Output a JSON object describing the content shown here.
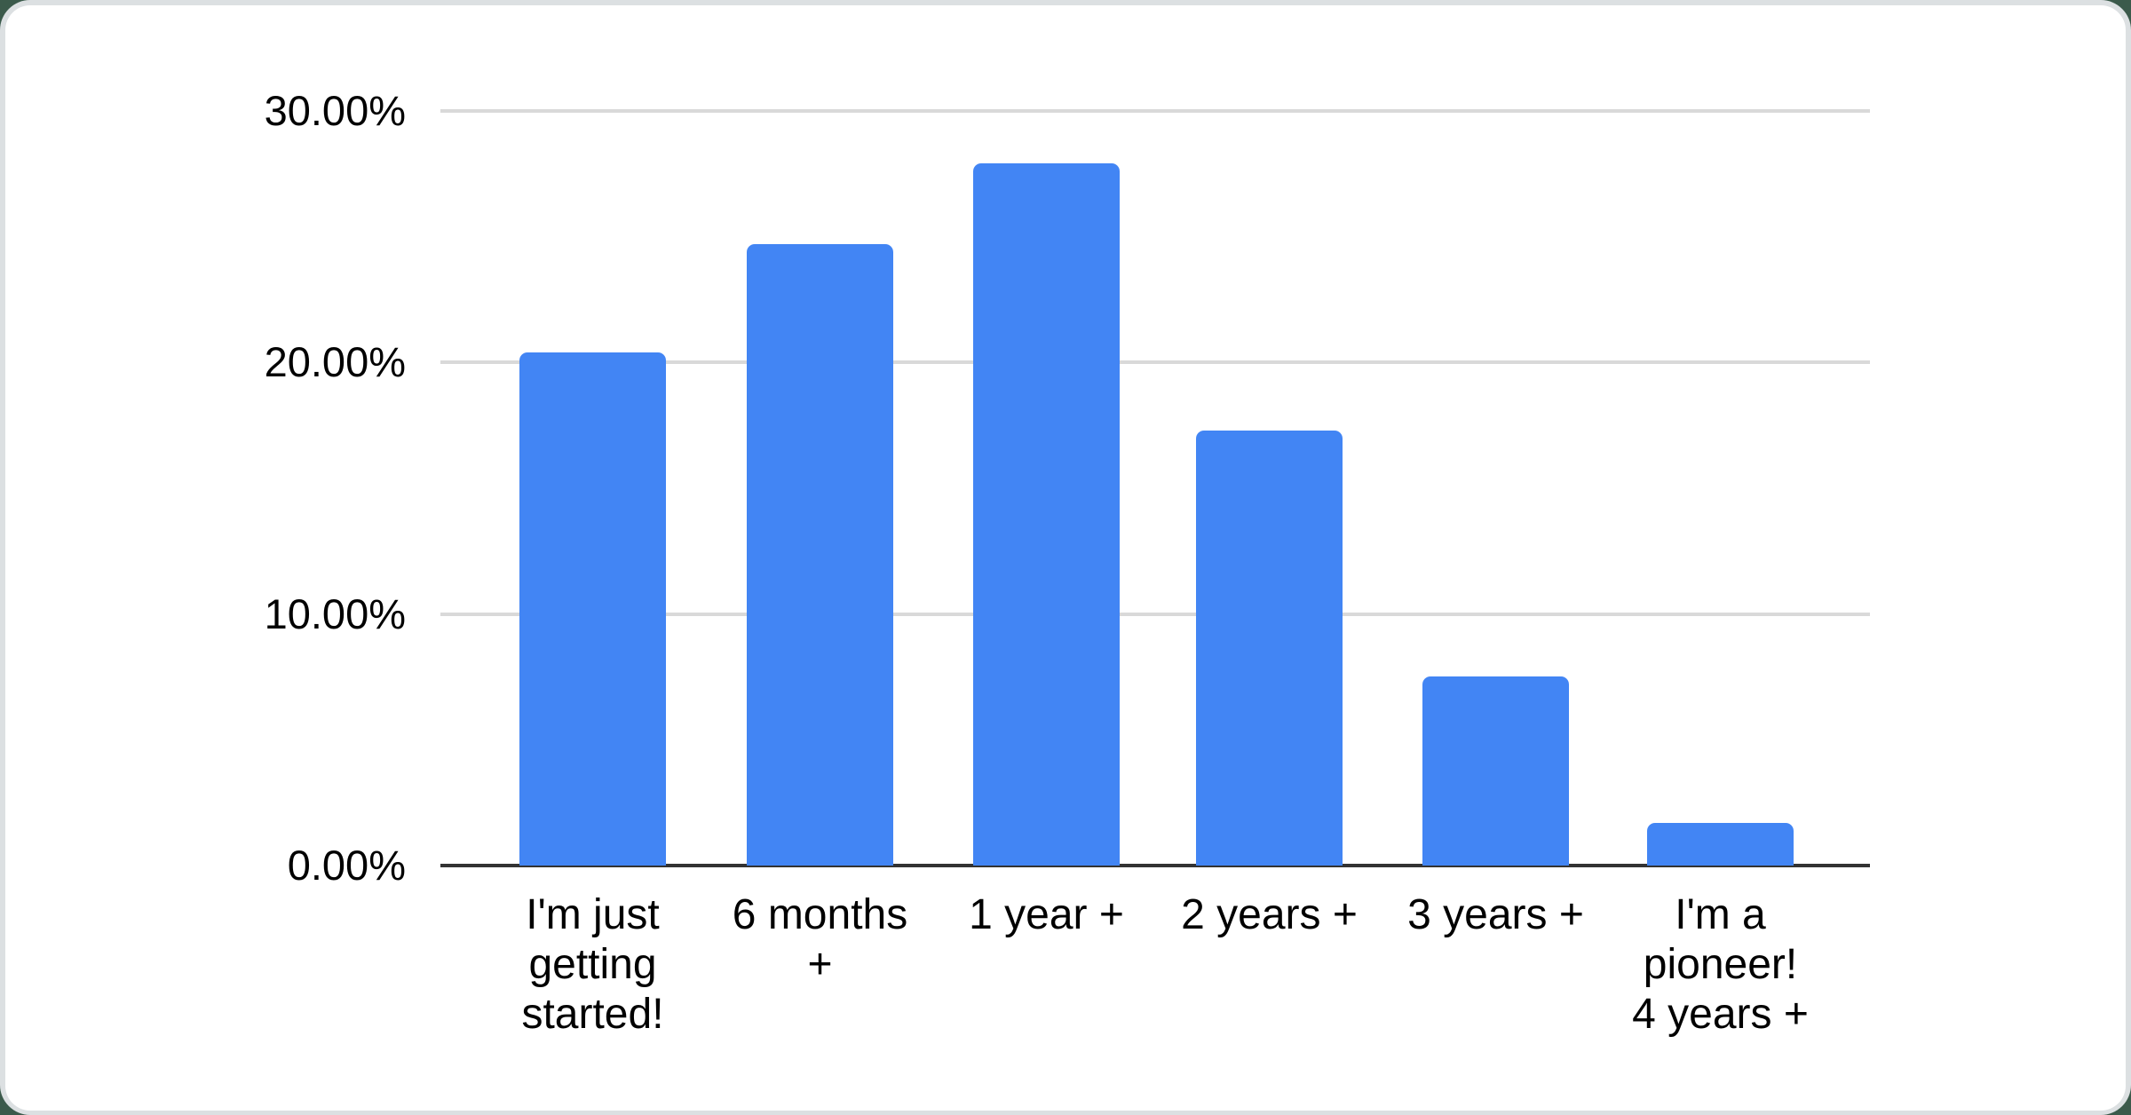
{
  "chart_data": {
    "type": "bar",
    "title": "",
    "xlabel": "",
    "ylabel": "",
    "categories": [
      "I'm just getting started!",
      "6 months +",
      "1 year +",
      "2 years +",
      "3 years +",
      "I'm a pioneer! 4 years +"
    ],
    "category_lines": [
      [
        "I'm just",
        "getting",
        "started!"
      ],
      [
        "6 months",
        "+"
      ],
      [
        "1 year +"
      ],
      [
        "2 years +"
      ],
      [
        "3 years +"
      ],
      [
        "I'm a",
        "pioneer!",
        "4 years +"
      ]
    ],
    "values": [
      20.4,
      24.7,
      27.9,
      17.3,
      7.5,
      1.7
    ],
    "unit": "percent",
    "y_ticks": [
      {
        "label": "30.00%",
        "value": 30
      },
      {
        "label": "20.00%",
        "value": 20
      },
      {
        "label": "10.00%",
        "value": 10
      },
      {
        "label": "0.00%",
        "value": 0
      }
    ],
    "ylim": [
      0,
      30
    ],
    "grid": true,
    "legend": "none"
  },
  "colors": {
    "bar": "#4285f4",
    "gridline": "#d9d9d9",
    "axis_line": "#333333",
    "text": "#000000",
    "card_background": "#ffffff",
    "rim_background": "#dce0e2",
    "page_background": "#3b5a4b"
  }
}
